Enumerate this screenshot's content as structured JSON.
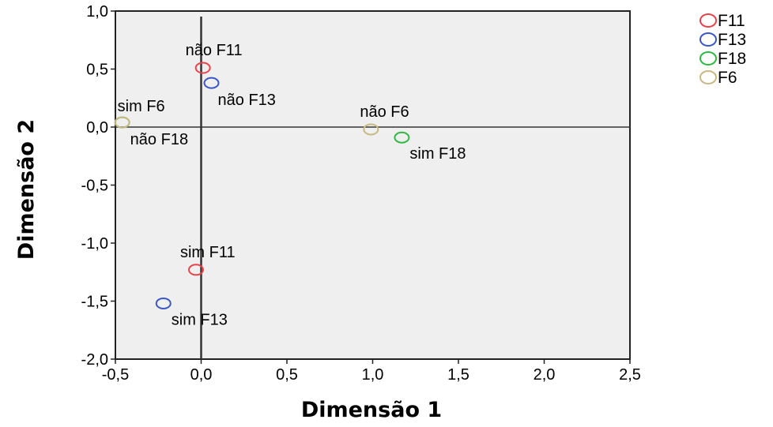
{
  "chart_data": {
    "type": "scatter",
    "title": "",
    "xlabel": "Dimensão 1",
    "ylabel": "Dimensão 2",
    "xlim": [
      -0.5,
      2.5
    ],
    "ylim": [
      -2.0,
      1.0
    ],
    "xticks": [
      -0.5,
      0.0,
      0.5,
      1.0,
      1.5,
      2.0,
      2.5
    ],
    "yticks": [
      -2.0,
      -1.5,
      -1.0,
      -0.5,
      0.0,
      0.5,
      1.0
    ],
    "xtick_labels": [
      "-0,5",
      "0,0",
      "0,5",
      "1,0",
      "1,5",
      "2,0",
      "2,5"
    ],
    "ytick_labels": [
      "-2,0",
      "-1,5",
      "-1,0",
      "-0,5",
      "0,0",
      "0,5",
      "1,0"
    ],
    "grid": false,
    "reference_lines": {
      "x": 0,
      "y": 0
    },
    "legend": {
      "position": "top-right"
    },
    "series": [
      {
        "name": "F11",
        "color": "#e8434b",
        "points": [
          {
            "label": "não F11",
            "x": 0.01,
            "y": 0.51
          },
          {
            "label": "sim F11",
            "x": -0.03,
            "y": -1.23
          }
        ]
      },
      {
        "name": "F13",
        "color": "#3b57c4",
        "points": [
          {
            "label": "não F13",
            "x": 0.06,
            "y": 0.38
          },
          {
            "label": "sim F13",
            "x": -0.22,
            "y": -1.52
          }
        ]
      },
      {
        "name": "F18",
        "color": "#2fb843",
        "points": [
          {
            "label": "não F18",
            "x": -0.46,
            "y": 0.04
          },
          {
            "label": "sim F18",
            "x": 1.17,
            "y": -0.09
          }
        ]
      },
      {
        "name": "F6",
        "color": "#c9b883",
        "points": [
          {
            "label": "sim F6",
            "x": -0.46,
            "y": 0.04
          },
          {
            "label": "não F6",
            "x": 0.99,
            "y": -0.02
          }
        ]
      }
    ]
  }
}
